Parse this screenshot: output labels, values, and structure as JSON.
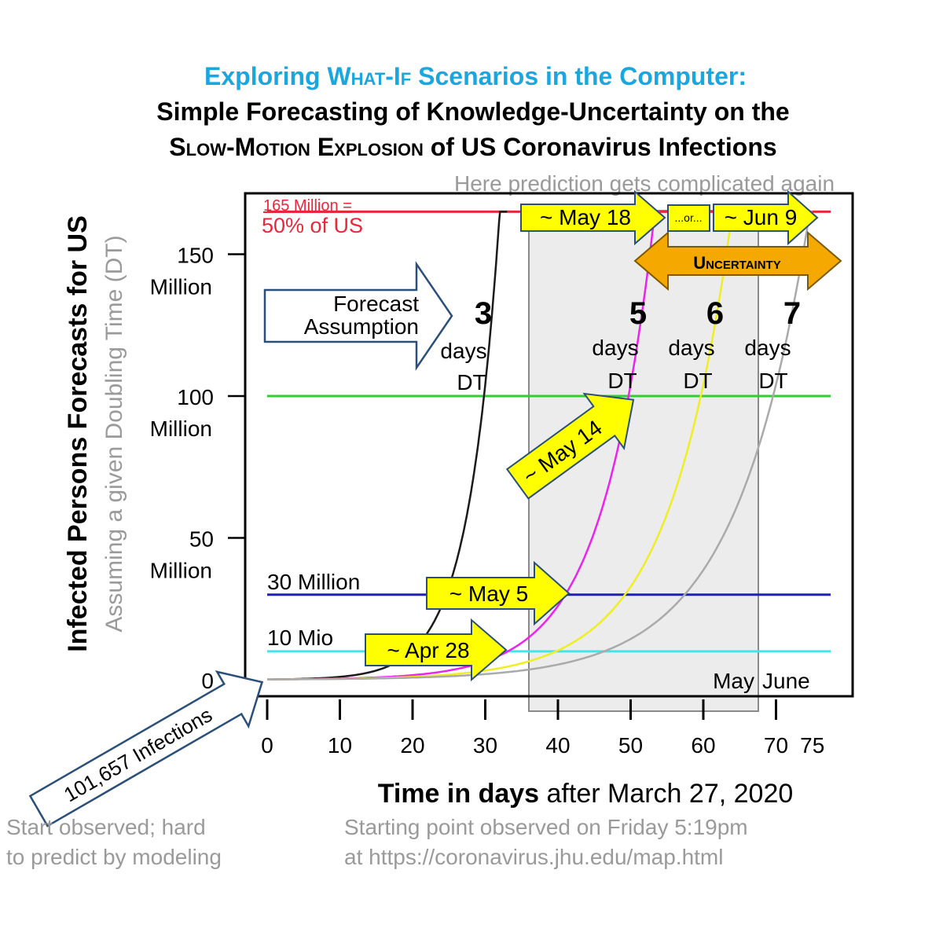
{
  "title": {
    "line1_a": "Exploring ",
    "line1_b": "What-If",
    "line1_c": " Scenarios in the Computer:",
    "line2": "Simple Forecasting of Knowledge-Uncertainty on the",
    "line3_a": "Slow-Motion Explosion",
    "line3_b": " of US Coronavirus Infections"
  },
  "top_note": "Here prediction gets complicated again",
  "colors": {
    "title_accent": "#1aa7e0",
    "red_line": "#e8283a",
    "green_line": "#2fcf2f",
    "blue_line": "#1f1fbf",
    "cyan_line": "#3ce8e8",
    "dt3": "#1a1a1a",
    "dt5": "#ee22ee",
    "dt6": "#eeee22",
    "dt7": "#aaaaaa",
    "arrow_yellow": "#ffff00",
    "arrow_orange": "#f5a800",
    "grey_text": "#9a9a9a",
    "shade": "#ececec"
  },
  "y_axis": {
    "label": "Infected Persons Forecasts for US",
    "sublabel": "Assuming a given Doubling Time (DT)",
    "ticks": [
      {
        "value": 150,
        "label": "150",
        "sub": "Million"
      },
      {
        "value": 100,
        "label": "100",
        "sub": "Million"
      },
      {
        "value": 50,
        "label": "50",
        "sub": "Million"
      },
      {
        "value": 0,
        "label": "0",
        "sub": ""
      }
    ]
  },
  "x_axis": {
    "label_bold": "Time  in  days",
    "label_rest": " after March 27, 2020",
    "ticks": [
      "0",
      "10",
      "20",
      "30",
      "40",
      "50",
      "60",
      "70",
      "75"
    ]
  },
  "month_labels": {
    "may": "May",
    "june": "June"
  },
  "reference_lines": {
    "red_label_1": "165 Million =",
    "red_label_2": "50% of US",
    "blue_label": "30 Million",
    "cyan_label": "10 Mio"
  },
  "forecast_box": {
    "line1": "Forecast",
    "line2": "Assumption"
  },
  "dt_labels": [
    {
      "num": "3",
      "days": "days",
      "dt": "DT"
    },
    {
      "num": "5",
      "days": "days",
      "dt": "DT"
    },
    {
      "num": "6",
      "days": "days",
      "dt": "DT"
    },
    {
      "num": "7",
      "days": "days",
      "dt": "DT"
    }
  ],
  "date_arrows": {
    "may18": "~ May 18",
    "or": "...or...",
    "jun9": "~ Jun 9",
    "uncertainty": "Uncertainty",
    "may14": "~ May 14",
    "may5": "~ May 5",
    "apr28": "~ Apr 28"
  },
  "start_arrow": "101,657 Infections",
  "notes": {
    "left_1": "Start observed; hard",
    "left_2": "to predict by modeling",
    "right_1": "Starting point observed on Friday 5:19pm",
    "right_2": "at https://coronavirus.jhu.edu/map.html"
  },
  "chart_data": {
    "type": "line",
    "title": "Simple Forecasting of Knowledge-Uncertainty on the Slow-Motion Explosion of US Coronavirus Infections",
    "xlabel": "Time in days after March 27, 2020",
    "ylabel": "Infected Persons Forecasts for US",
    "x_unit": "days",
    "y_unit": "million persons",
    "xlim": [
      0,
      75
    ],
    "ylim": [
      0,
      165
    ],
    "start_value_millions": 0.101657,
    "series": [
      {
        "name": "3 days DT",
        "doubling_time_days": 3,
        "x_end": 33
      },
      {
        "name": "5 days DT",
        "doubling_time_days": 5,
        "x_end": 54
      },
      {
        "name": "6 days DT",
        "doubling_time_days": 6,
        "x_end": 65
      },
      {
        "name": "7 days DT",
        "doubling_time_days": 7,
        "x_end": 75
      }
    ],
    "horizontal_lines": [
      {
        "label": "165 Million = 50% of US",
        "y": 165
      },
      {
        "label": "",
        "y": 100
      },
      {
        "label": "30 Million",
        "y": 30
      },
      {
        "label": "10 Mio",
        "y": 10
      }
    ],
    "shaded_range": {
      "x": [
        35,
        67
      ],
      "months": [
        "May",
        "June"
      ]
    },
    "annotations": [
      {
        "text": "~ Apr 28",
        "y": 10
      },
      {
        "text": "~ May 5",
        "y": 30
      },
      {
        "text": "~ May 14",
        "y": 100
      },
      {
        "text": "~ May 18",
        "y": 165
      },
      {
        "text": "~ Jun 9",
        "y": 165
      }
    ]
  }
}
